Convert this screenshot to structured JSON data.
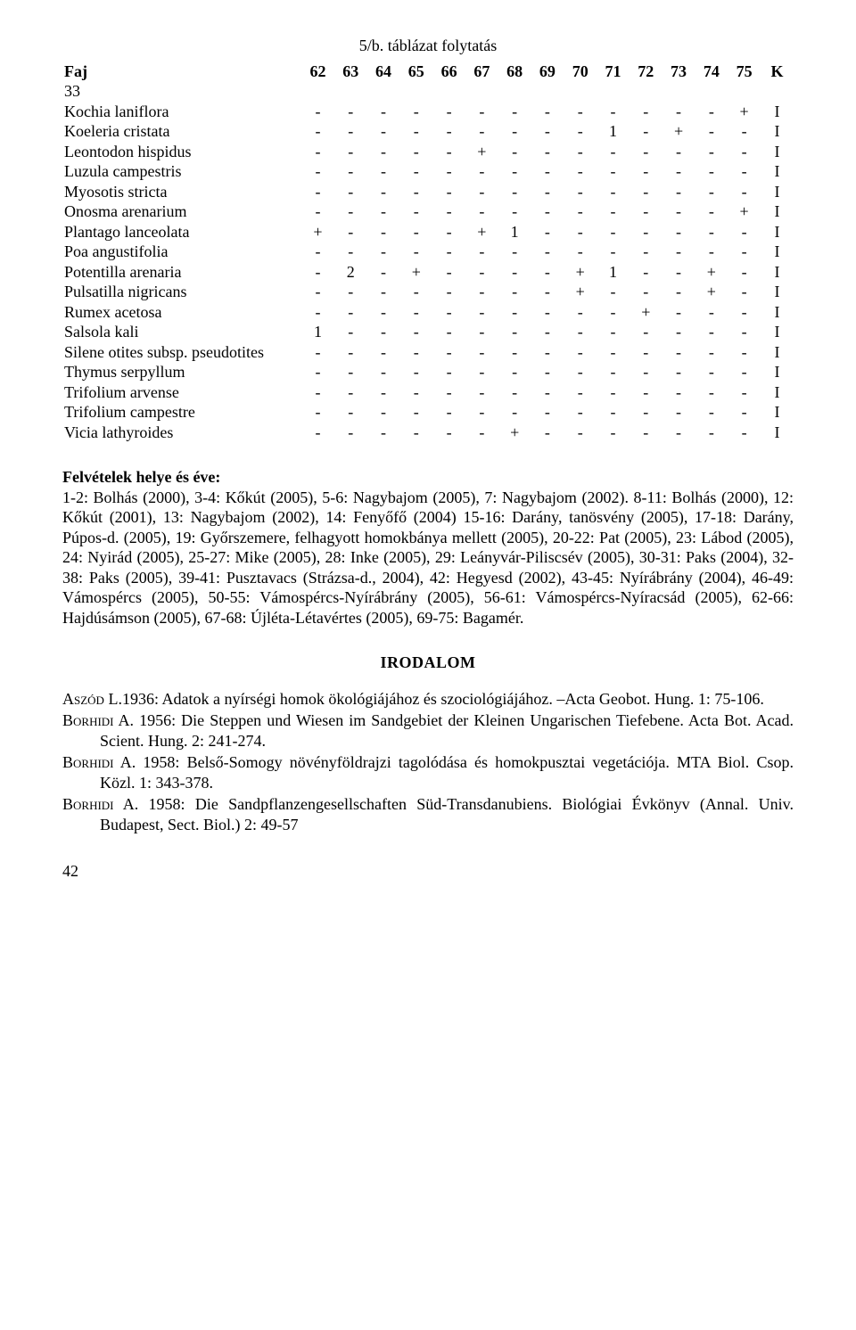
{
  "caption": "5/b. táblázat folytatás",
  "table": {
    "header": {
      "label": "Faj",
      "cols": [
        "62",
        "63",
        "64",
        "65",
        "66",
        "67",
        "68",
        "69",
        "70",
        "71",
        "72",
        "73",
        "74",
        "75",
        "K"
      ]
    },
    "subhead": "33",
    "rows": [
      {
        "sp": "Kochia laniflora",
        "v": [
          "-",
          "-",
          "-",
          "-",
          "-",
          "-",
          "-",
          "-",
          "-",
          "-",
          "-",
          "-",
          "-",
          "+",
          "I"
        ]
      },
      {
        "sp": "Koeleria cristata",
        "v": [
          "-",
          "-",
          "-",
          "-",
          "-",
          "-",
          "-",
          "-",
          "-",
          "1",
          "-",
          "+",
          "-",
          "-",
          "I"
        ]
      },
      {
        "sp": "Leontodon hispidus",
        "v": [
          "-",
          "-",
          "-",
          "-",
          "-",
          "+",
          "-",
          "-",
          "-",
          "-",
          "-",
          "-",
          "-",
          "-",
          "I"
        ]
      },
      {
        "sp": "Luzula campestris",
        "v": [
          "-",
          "-",
          "-",
          "-",
          "-",
          "-",
          "-",
          "-",
          "-",
          "-",
          "-",
          "-",
          "-",
          "-",
          "I"
        ]
      },
      {
        "sp": "Myosotis stricta",
        "v": [
          "-",
          "-",
          "-",
          "-",
          "-",
          "-",
          "-",
          "-",
          "-",
          "-",
          "-",
          "-",
          "-",
          "-",
          "I"
        ]
      },
      {
        "sp": "Onosma arenarium",
        "v": [
          "-",
          "-",
          "-",
          "-",
          "-",
          "-",
          "-",
          "-",
          "-",
          "-",
          "-",
          "-",
          "-",
          "+",
          "I"
        ]
      },
      {
        "sp": "Plantago lanceolata",
        "v": [
          "+",
          "-",
          "-",
          "-",
          "-",
          "+",
          "1",
          "-",
          "-",
          "-",
          "-",
          "-",
          "-",
          "-",
          "I"
        ]
      },
      {
        "sp": "Poa angustifolia",
        "v": [
          "-",
          "-",
          "-",
          "-",
          "-",
          "-",
          "-",
          "-",
          "-",
          "-",
          "-",
          "-",
          "-",
          "-",
          "I"
        ]
      },
      {
        "sp": "Potentilla arenaria",
        "v": [
          "-",
          "2",
          "-",
          "+",
          "-",
          "-",
          "-",
          "-",
          "+",
          "1",
          "-",
          "-",
          "+",
          "-",
          "I"
        ]
      },
      {
        "sp": "Pulsatilla nigricans",
        "v": [
          "-",
          "-",
          "-",
          "-",
          "-",
          "-",
          "-",
          "-",
          "+",
          "-",
          "-",
          "-",
          "+",
          "-",
          "I"
        ]
      },
      {
        "sp": "Rumex acetosa",
        "v": [
          "-",
          "-",
          "-",
          "-",
          "-",
          "-",
          "-",
          "-",
          "-",
          "-",
          "+",
          "-",
          "-",
          "-",
          "I"
        ]
      },
      {
        "sp": "Salsola kali",
        "v": [
          "1",
          "-",
          "-",
          "-",
          "-",
          "-",
          "-",
          "-",
          "-",
          "-",
          "-",
          "-",
          "-",
          "-",
          "I"
        ]
      },
      {
        "sp": "Silene otites subsp. pseudotites",
        "v": [
          "-",
          "-",
          "-",
          "-",
          "-",
          "-",
          "-",
          "-",
          "-",
          "-",
          "-",
          "-",
          "-",
          "-",
          "I"
        ]
      },
      {
        "sp": "Thymus serpyllum",
        "v": [
          "-",
          "-",
          "-",
          "-",
          "-",
          "-",
          "-",
          "-",
          "-",
          "-",
          "-",
          "-",
          "-",
          "-",
          "I"
        ]
      },
      {
        "sp": "Trifolium arvense",
        "v": [
          "-",
          "-",
          "-",
          "-",
          "-",
          "-",
          "-",
          "-",
          "-",
          "-",
          "-",
          "-",
          "-",
          "-",
          "I"
        ]
      },
      {
        "sp": "Trifolium campestre",
        "v": [
          "-",
          "-",
          "-",
          "-",
          "-",
          "-",
          "-",
          "-",
          "-",
          "-",
          "-",
          "-",
          "-",
          "-",
          "I"
        ]
      },
      {
        "sp": "Vicia lathyroides",
        "v": [
          "-",
          "-",
          "-",
          "-",
          "-",
          "-",
          "+",
          "-",
          "-",
          "-",
          "-",
          "-",
          "-",
          "-",
          "I"
        ]
      }
    ]
  },
  "locality": {
    "title": "Felvételek helye és éve:",
    "text": "1-2: Bolhás (2000), 3-4: Kőkút (2005), 5-6: Nagybajom (2005), 7: Nagybajom (2002). 8-11: Bolhás (2000), 12: Kőkút (2001), 13: Nagybajom (2002), 14: Fenyőfő (2004) 15-16: Darány, tanösvény (2005), 17-18: Darány, Púpos-d. (2005), 19: Győrszemere, felhagyott homokbánya mellett (2005), 20-22: Pat (2005), 23: Lábod (2005), 24: Nyirád (2005), 25-27: Mike (2005), 28: Inke (2005), 29: Leányvár-Piliscsév (2005), 30-31: Paks (2004), 32-38: Paks (2005), 39-41: Pusztavacs (Strázsa-d., 2004), 42: Hegyesd (2002), 43-45: Nyírábrány (2004), 46-49: Vámospércs (2005), 50-55: Vámospércs-Nyírábrány (2005), 56-61: Vámospércs-Nyíracsád (2005), 62-66: Hajdúsámson (2005), 67-68: Újléta-Létavértes (2005), 69-75: Bagamér."
  },
  "irodalom": "IRODALOM",
  "refs": [
    {
      "author": "Aszód L.",
      "rest": "1936: Adatok a nyírségi homok ökológiájához és szociológiájához. –Acta Geobot. Hung. 1: 75-106."
    },
    {
      "author": "Borhidi A.",
      "rest": " 1956: Die Steppen und Wiesen im Sandgebiet der Kleinen Ungarischen Tiefebene. Acta Bot. Acad. Scient. Hung. 2: 241-274."
    },
    {
      "author": "Borhidi A.",
      "rest": " 1958: Belső-Somogy növényföldrajzi tagolódása és homokpusztai vegetációja. MTA Biol. Csop. Közl. 1: 343-378."
    },
    {
      "author": "Borhidi A.",
      "rest": " 1958: Die Sandpflanzengesellschaften Süd-Transdanubiens. Biológiai Évkönyv (Annal. Univ. Budapest, Sect. Biol.) 2: 49-57"
    }
  ],
  "pagenum": "42"
}
